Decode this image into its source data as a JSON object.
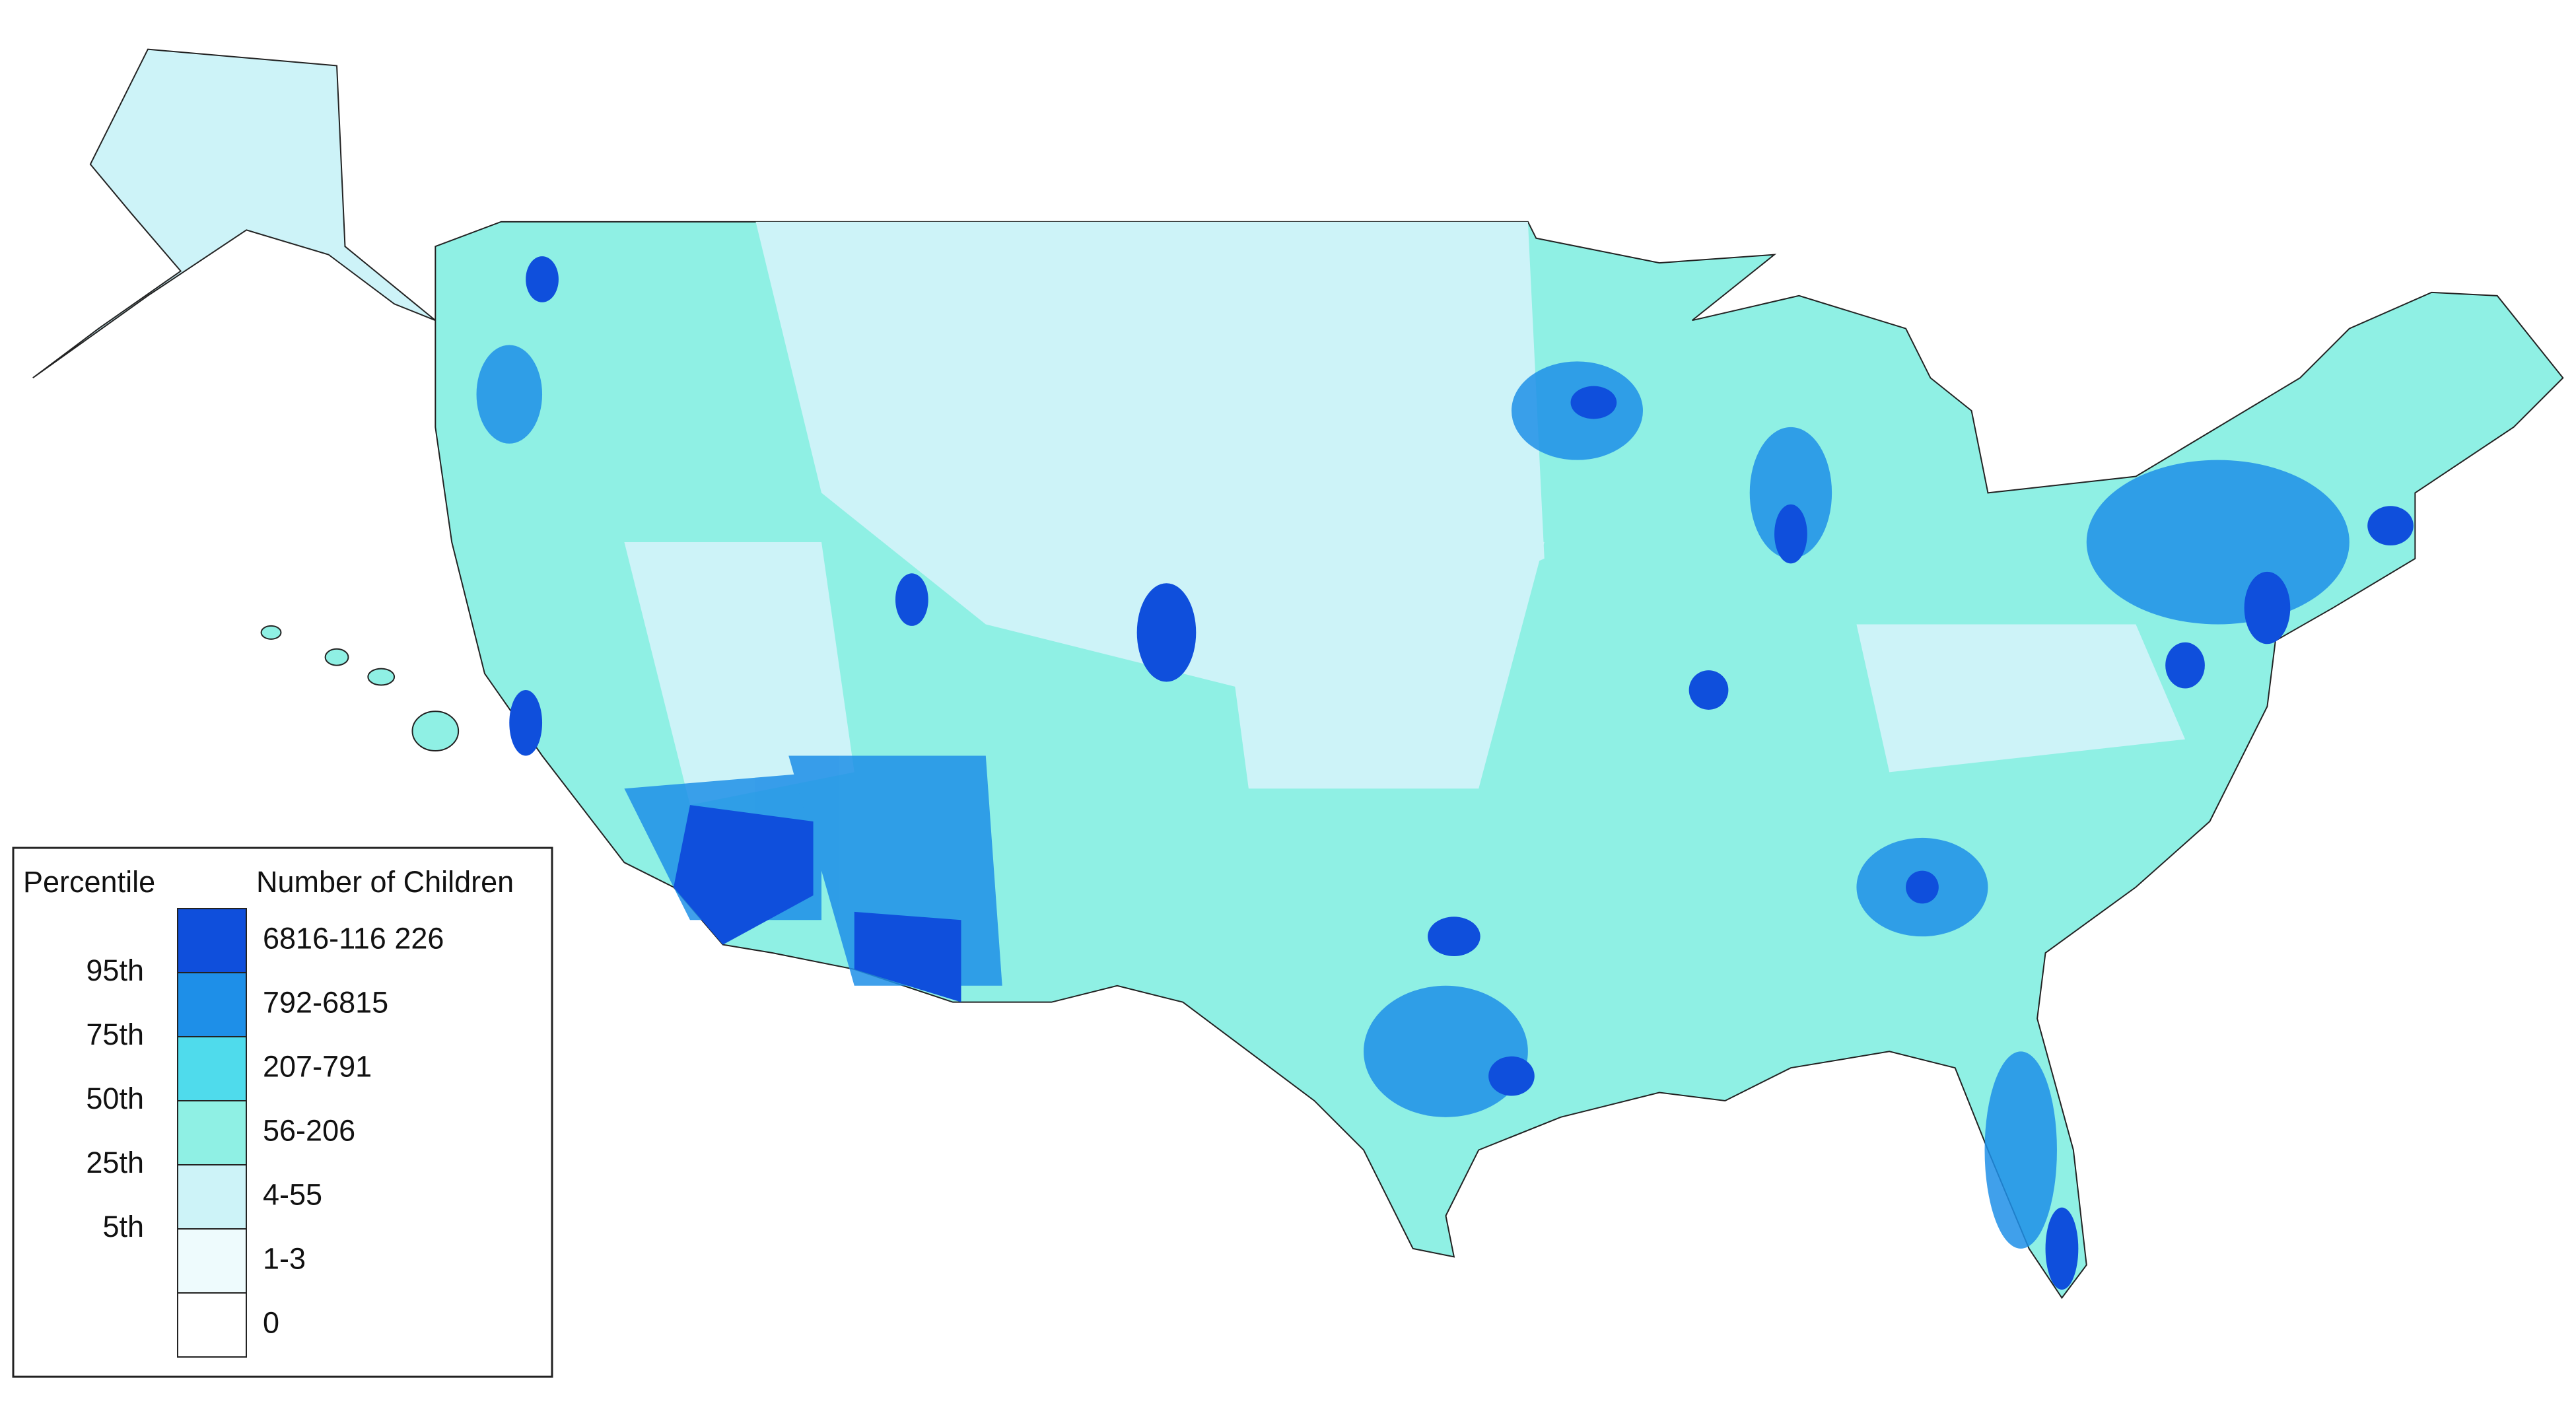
{
  "legend": {
    "percentile_title": "Percentile",
    "count_title": "Number of Children",
    "bins": [
      {
        "label": "6816-116 226",
        "color": "#0f4fdc"
      },
      {
        "label": "792-6815",
        "color": "#1e8fe8"
      },
      {
        "label": "207-791",
        "color": "#4fdbec"
      },
      {
        "label": "56-206",
        "color": "#8ff0e4"
      },
      {
        "label": "4-55",
        "color": "#cdf3f8"
      },
      {
        "label": "1-3",
        "color": "#eefbfd"
      },
      {
        "label": "0",
        "color": "#ffffff"
      }
    ],
    "percentiles": [
      "95th",
      "75th",
      "50th",
      "25th",
      "5th"
    ]
  }
}
